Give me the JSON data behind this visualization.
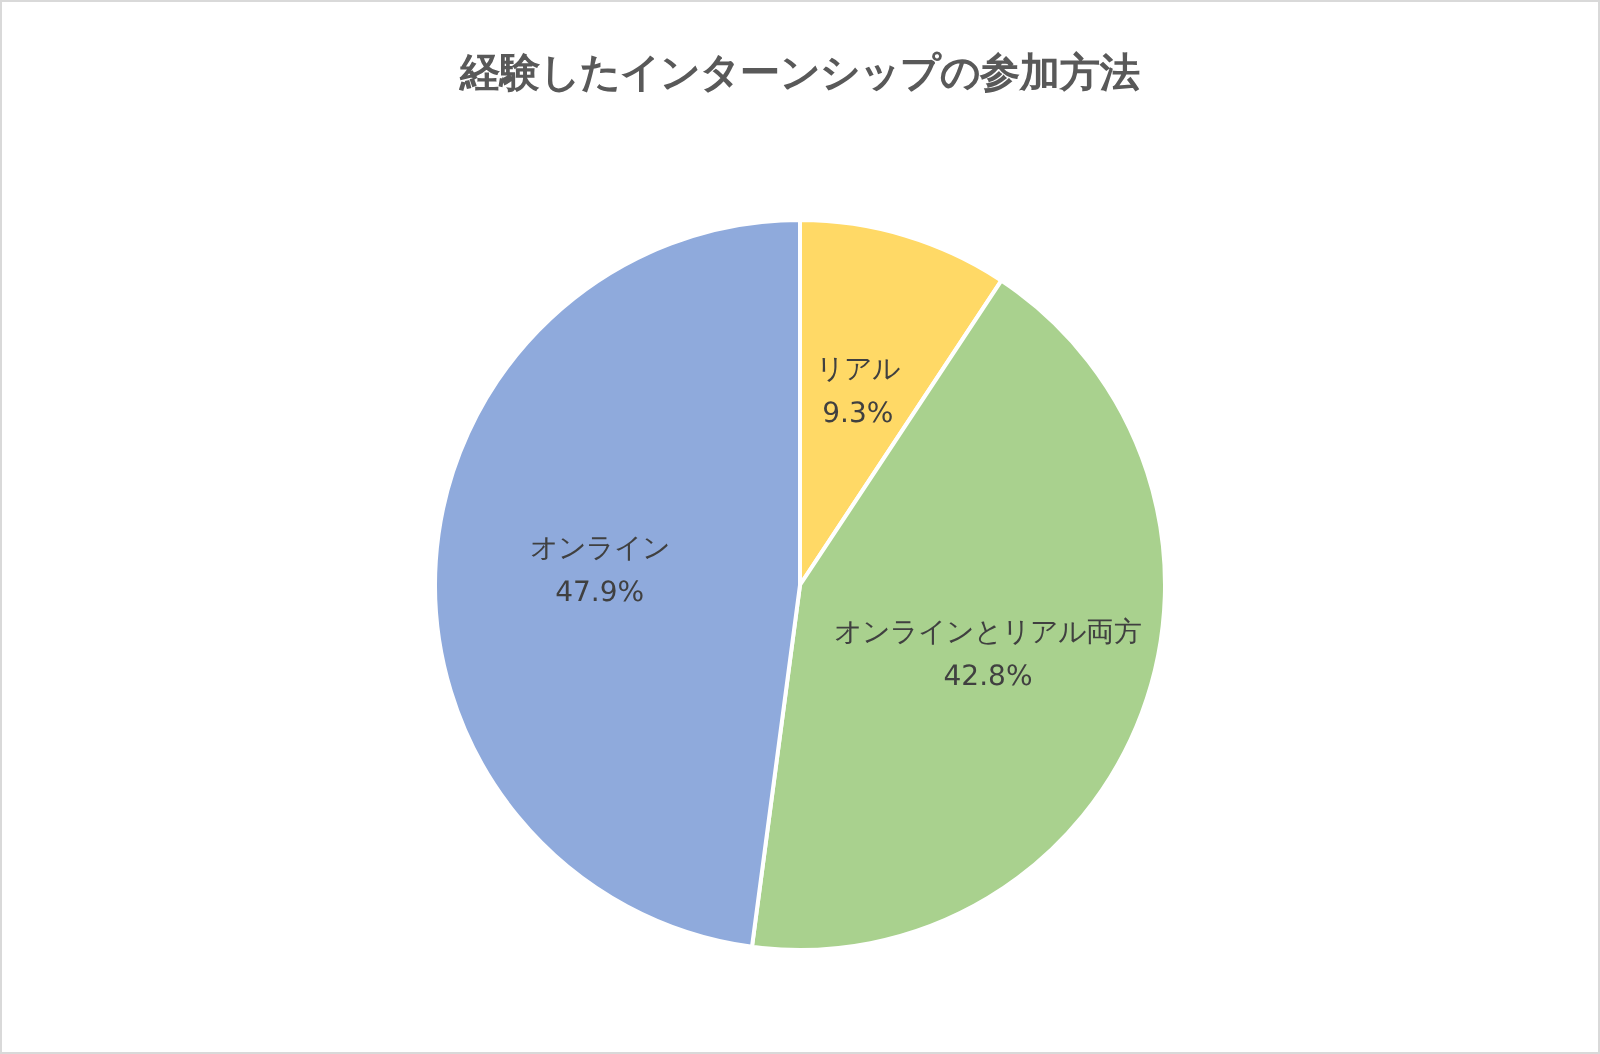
{
  "chart_data": {
    "type": "pie",
    "title": "経験したインターンシップの参加方法",
    "categories": [
      "リアル",
      "オンラインとリアル両方",
      "オンライン"
    ],
    "values": [
      9.3,
      42.8,
      47.9
    ],
    "value_labels": [
      "9.3%",
      "42.8%",
      "47.9%"
    ],
    "colors": [
      "#ffd966",
      "#a9d18e",
      "#8faadc"
    ],
    "legend": false
  }
}
